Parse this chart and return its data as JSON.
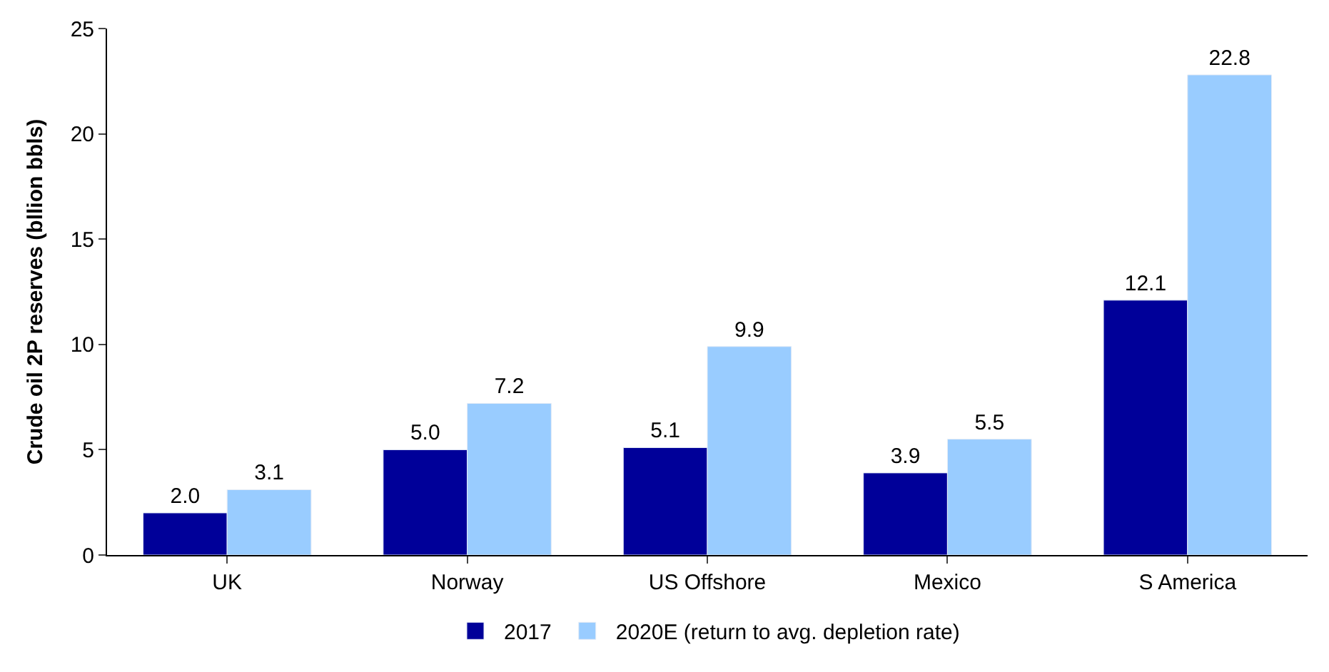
{
  "chart_data": {
    "type": "bar",
    "ylabel": "Crude oil 2P reserves (bllion bbls)",
    "categories": [
      "UK",
      "Norway",
      "US Offshore",
      "Mexico",
      "S America"
    ],
    "series": [
      {
        "name": "2017",
        "color": "#000099",
        "values": [
          2.0,
          5.0,
          5.1,
          3.9,
          12.1
        ],
        "value_labels": [
          "2.0",
          "5.0",
          "5.1",
          "3.9",
          "12.1"
        ]
      },
      {
        "name": "2020E (return to avg. depletion rate)",
        "color": "#99ccff",
        "values": [
          3.1,
          7.2,
          9.9,
          5.5,
          22.8
        ],
        "value_labels": [
          "3.1",
          "7.2",
          "9.9",
          "5.5",
          "22.8"
        ]
      }
    ],
    "ylim": [
      0,
      25
    ],
    "yticks": [
      0,
      5,
      10,
      15,
      20,
      25
    ],
    "grid": false,
    "legend": "bottom"
  }
}
